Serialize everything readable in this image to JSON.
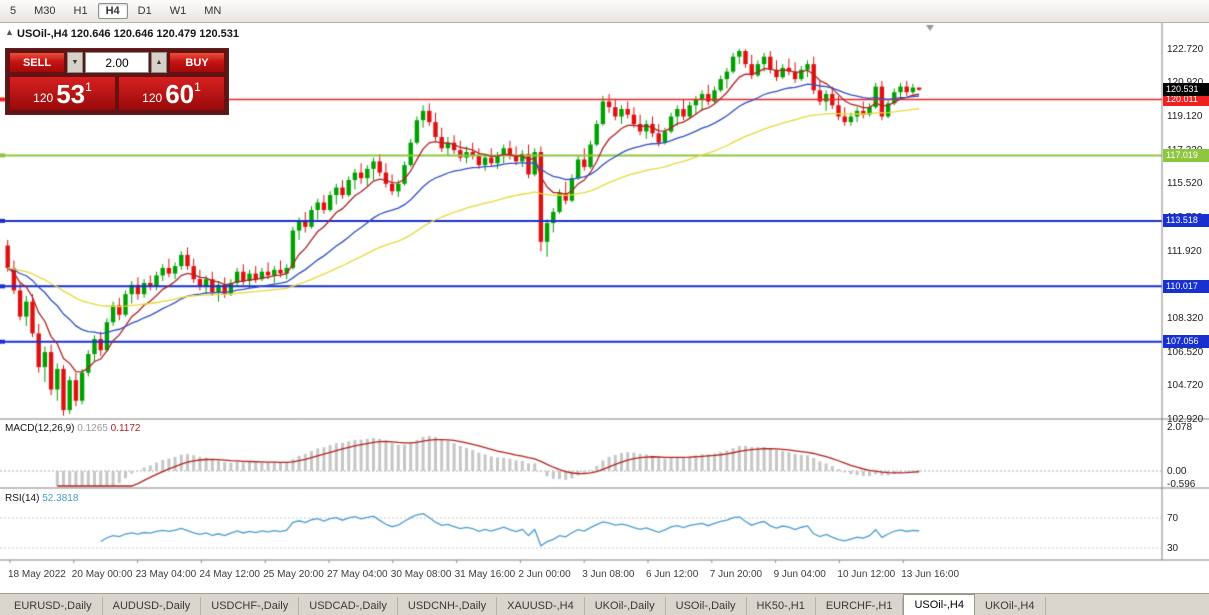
{
  "toolbar": {
    "timeframes": [
      "5",
      "M30",
      "H1",
      "H4",
      "D1",
      "W1",
      "MN"
    ],
    "active": "H4"
  },
  "chart": {
    "title": "USOil-,H4 120.646 120.646 120.479 120.531"
  },
  "trade_panel": {
    "sell_label": "SELL",
    "buy_label": "BUY",
    "volume": "2.00",
    "sell_price": {
      "int": "120",
      "pips": "53",
      "sup": "1"
    },
    "buy_price": {
      "int": "120",
      "pips": "60",
      "sup": "1"
    }
  },
  "tabs": {
    "items": [
      "EURUSD-,Daily",
      "AUDUSD-,Daily",
      "USDCHF-,Daily",
      "USDCAD-,Daily",
      "USDCNH-,Daily",
      "XAUUSD-,H4",
      "UKOil-,Daily",
      "USOil-,Daily",
      "HK50-,H1",
      "EURCHF-,H1",
      "USOil-,H4",
      "UKOil-,H4"
    ],
    "active": "USOil-,H4"
  },
  "colors": {
    "bull": "#00a000",
    "bear": "#e01010",
    "background": "#ffffff",
    "axis_line": "#808080",
    "macd_hist": "#c6c6c6",
    "macd_signal": "#b22222",
    "rsi_line": "#4a9cd3",
    "bid_tag": "#000000",
    "panel": "#4f0f0f",
    "button": "#c41414"
  },
  "chart_data": {
    "type": "candlestick",
    "symbol": "USOil-",
    "timeframe": "H4",
    "last_ohlc": {
      "open": "120.646",
      "high": "120.646",
      "low": "120.479",
      "close": "120.531"
    },
    "price_axis": {
      "labels": [
        "122.720",
        "120.920",
        "119.120",
        "117.320",
        "115.520",
        "113.720",
        "111.920",
        "110.120",
        "108.320",
        "106.520",
        "104.720",
        "102.920"
      ]
    },
    "time_axis": {
      "labels": [
        "18 May 2022",
        "20 May 00:00",
        "23 May 04:00",
        "24 May 12:00",
        "25 May 20:00",
        "27 May 04:00",
        "30 May 08:00",
        "31 May 16:00",
        "2 Jun 00:00",
        "3 Jun 08:00",
        "6 Jun 12:00",
        "7 Jun 20:00",
        "9 Jun 04:00",
        "10 Jun 12:00",
        "13 Jun 16:00"
      ]
    },
    "bid": {
      "price": 120.531,
      "label": "120.531"
    },
    "hlines": [
      {
        "price": 120.011,
        "label": "120.011",
        "color": "#f02020",
        "width": 1.5
      },
      {
        "price": 117.019,
        "label": "117.019",
        "color": "#8dc63f",
        "width": 2
      },
      {
        "price": 113.518,
        "label": "113.518",
        "color": "#1830cf",
        "width": 2
      },
      {
        "price": 110.017,
        "label": "110.017",
        "color": "#1830cf",
        "width": 2
      },
      {
        "price": 107.056,
        "label": "107.056",
        "color": "#1830cf",
        "width": 2
      }
    ],
    "moving_averages": [
      {
        "period": 8,
        "color": "#b22222"
      },
      {
        "period": 24,
        "color": "#3050c8"
      },
      {
        "period": 55,
        "color": "#e8d93a"
      }
    ],
    "macd": {
      "label": "MACD(12,26,9)",
      "value_main": "0.1265",
      "value_signal": "0.1172",
      "axis_labels": [
        {
          "value": 2.078,
          "label": "2.078"
        },
        {
          "value": 0,
          "label": "0.00"
        },
        {
          "value": -0.596,
          "label": "-0.596"
        }
      ]
    },
    "rsi": {
      "label": "RSI(14)",
      "value": "52.3818",
      "levels": [
        {
          "value": 70,
          "label": "70"
        },
        {
          "value": 30,
          "label": "30"
        }
      ]
    },
    "ohlc": [
      [
        112.2,
        112.5,
        110.8,
        111.0
      ],
      [
        111.0,
        111.4,
        109.6,
        109.8
      ],
      [
        109.8,
        110.2,
        108.2,
        108.4
      ],
      [
        108.4,
        109.5,
        107.9,
        109.2
      ],
      [
        109.2,
        109.6,
        107.3,
        107.5
      ],
      [
        107.5,
        108.0,
        105.4,
        105.7
      ],
      [
        105.7,
        106.8,
        104.9,
        106.5
      ],
      [
        106.5,
        106.9,
        104.2,
        104.5
      ],
      [
        104.5,
        105.9,
        103.9,
        105.6
      ],
      [
        105.6,
        105.8,
        103.1,
        103.4
      ],
      [
        103.4,
        105.2,
        103.2,
        105.0
      ],
      [
        105.0,
        105.4,
        103.6,
        103.9
      ],
      [
        103.9,
        105.6,
        103.7,
        105.4
      ],
      [
        105.4,
        106.6,
        105.2,
        106.4
      ],
      [
        106.4,
        107.4,
        106.0,
        107.2
      ],
      [
        107.2,
        107.6,
        106.3,
        106.6
      ],
      [
        106.6,
        108.3,
        106.5,
        108.1
      ],
      [
        108.1,
        109.2,
        107.9,
        109.0
      ],
      [
        109.0,
        109.4,
        108.2,
        108.5
      ],
      [
        108.5,
        109.8,
        108.4,
        109.6
      ],
      [
        109.6,
        110.3,
        109.1,
        110.1
      ],
      [
        110.1,
        110.5,
        109.3,
        109.6
      ],
      [
        109.6,
        110.4,
        109.4,
        110.2
      ],
      [
        110.2,
        110.6,
        109.8,
        110.0
      ],
      [
        110.0,
        110.8,
        109.8,
        110.6
      ],
      [
        110.6,
        111.2,
        110.3,
        111.0
      ],
      [
        111.0,
        111.5,
        110.5,
        110.7
      ],
      [
        110.7,
        111.3,
        110.4,
        111.1
      ],
      [
        111.1,
        111.9,
        110.9,
        111.7
      ],
      [
        111.7,
        112.1,
        110.9,
        111.1
      ],
      [
        111.1,
        111.5,
        110.2,
        110.4
      ],
      [
        110.4,
        110.9,
        109.8,
        110.0
      ],
      [
        110.0,
        110.6,
        109.6,
        110.4
      ],
      [
        110.4,
        110.8,
        109.5,
        109.7
      ],
      [
        109.7,
        110.3,
        109.2,
        110.1
      ],
      [
        110.1,
        110.5,
        109.4,
        109.6
      ],
      [
        109.6,
        110.4,
        109.5,
        110.2
      ],
      [
        110.2,
        111.0,
        110.0,
        110.8
      ],
      [
        110.8,
        111.2,
        110.1,
        110.3
      ],
      [
        110.3,
        110.9,
        109.9,
        110.7
      ],
      [
        110.7,
        111.1,
        110.2,
        110.4
      ],
      [
        110.4,
        111.0,
        110.3,
        110.8
      ],
      [
        110.8,
        111.3,
        110.4,
        110.6
      ],
      [
        110.6,
        111.1,
        110.2,
        110.9
      ],
      [
        110.9,
        111.4,
        110.5,
        110.7
      ],
      [
        110.7,
        111.2,
        110.4,
        111.0
      ],
      [
        111.0,
        113.2,
        110.9,
        113.0
      ],
      [
        113.0,
        113.7,
        112.5,
        113.5
      ],
      [
        113.5,
        114.0,
        112.9,
        113.2
      ],
      [
        113.2,
        114.3,
        113.1,
        114.1
      ],
      [
        114.1,
        114.7,
        113.6,
        114.5
      ],
      [
        114.5,
        114.9,
        113.9,
        114.1
      ],
      [
        114.1,
        115.1,
        114.0,
        114.9
      ],
      [
        114.9,
        115.5,
        114.4,
        115.3
      ],
      [
        115.3,
        115.7,
        114.7,
        114.9
      ],
      [
        114.9,
        115.9,
        114.8,
        115.7
      ],
      [
        115.7,
        116.3,
        115.2,
        116.1
      ],
      [
        116.1,
        116.6,
        115.5,
        115.8
      ],
      [
        115.8,
        116.5,
        115.4,
        116.3
      ],
      [
        116.3,
        116.9,
        115.7,
        116.7
      ],
      [
        116.7,
        117.1,
        115.9,
        116.1
      ],
      [
        116.1,
        116.6,
        115.3,
        115.5
      ],
      [
        115.5,
        116.0,
        114.9,
        115.1
      ],
      [
        115.1,
        115.7,
        114.8,
        115.5
      ],
      [
        115.5,
        116.7,
        115.4,
        116.5
      ],
      [
        116.5,
        117.9,
        116.4,
        117.7
      ],
      [
        117.7,
        119.1,
        117.6,
        118.9
      ],
      [
        118.9,
        119.7,
        118.5,
        119.4
      ],
      [
        119.4,
        119.8,
        118.6,
        118.8
      ],
      [
        118.8,
        119.3,
        117.8,
        118.0
      ],
      [
        118.0,
        118.5,
        117.2,
        117.4
      ],
      [
        117.4,
        118.0,
        117.0,
        117.7
      ],
      [
        117.7,
        118.1,
        117.1,
        117.3
      ],
      [
        117.3,
        117.8,
        116.7,
        116.9
      ],
      [
        116.9,
        117.5,
        116.6,
        117.2
      ],
      [
        117.2,
        117.7,
        116.8,
        117.0
      ],
      [
        117.0,
        117.4,
        116.3,
        116.5
      ],
      [
        116.5,
        117.1,
        116.2,
        116.9
      ],
      [
        116.9,
        117.4,
        116.4,
        116.6
      ],
      [
        116.6,
        117.2,
        116.3,
        117.0
      ],
      [
        117.0,
        117.6,
        116.6,
        117.4
      ],
      [
        117.4,
        117.8,
        116.8,
        117.0
      ],
      [
        117.0,
        117.5,
        116.5,
        116.7
      ],
      [
        116.7,
        117.3,
        116.4,
        117.1
      ],
      [
        117.1,
        117.6,
        115.8,
        116.0
      ],
      [
        116.0,
        117.4,
        115.9,
        117.2
      ],
      [
        117.2,
        117.5,
        111.9,
        112.4
      ],
      [
        112.4,
        113.6,
        111.6,
        113.4
      ],
      [
        113.4,
        114.2,
        112.9,
        114.0
      ],
      [
        114.0,
        115.2,
        113.9,
        115.0
      ],
      [
        115.0,
        115.6,
        114.4,
        114.6
      ],
      [
        114.6,
        116.0,
        114.5,
        115.8
      ],
      [
        115.8,
        117.0,
        115.7,
        116.8
      ],
      [
        116.8,
        117.4,
        116.2,
        116.4
      ],
      [
        116.4,
        117.8,
        116.3,
        117.6
      ],
      [
        117.6,
        118.9,
        117.5,
        118.7
      ],
      [
        118.7,
        120.2,
        118.6,
        119.9
      ],
      [
        119.9,
        120.3,
        119.3,
        119.6
      ],
      [
        119.6,
        120.0,
        118.9,
        119.1
      ],
      [
        119.1,
        119.7,
        118.7,
        119.5
      ],
      [
        119.5,
        119.9,
        119.0,
        119.2
      ],
      [
        119.2,
        119.6,
        118.5,
        118.7
      ],
      [
        118.7,
        119.2,
        118.1,
        118.3
      ],
      [
        118.3,
        118.9,
        117.9,
        118.7
      ],
      [
        118.7,
        119.1,
        118.0,
        118.2
      ],
      [
        118.2,
        118.7,
        117.5,
        117.7
      ],
      [
        117.7,
        118.5,
        117.6,
        118.3
      ],
      [
        118.3,
        119.3,
        118.2,
        119.1
      ],
      [
        119.1,
        119.7,
        118.6,
        119.5
      ],
      [
        119.5,
        120.0,
        118.9,
        119.1
      ],
      [
        119.1,
        119.9,
        119.0,
        119.7
      ],
      [
        119.7,
        120.2,
        119.2,
        120.0
      ],
      [
        120.0,
        120.5,
        119.4,
        120.3
      ],
      [
        120.3,
        120.8,
        119.7,
        119.9
      ],
      [
        119.9,
        120.7,
        119.8,
        120.5
      ],
      [
        120.5,
        121.3,
        120.4,
        121.1
      ],
      [
        121.1,
        121.7,
        120.6,
        121.5
      ],
      [
        121.5,
        122.5,
        121.4,
        122.3
      ],
      [
        122.3,
        122.72,
        121.9,
        122.6
      ],
      [
        122.6,
        122.7,
        121.7,
        121.9
      ],
      [
        121.9,
        122.4,
        121.1,
        121.3
      ],
      [
        121.3,
        122.1,
        121.2,
        121.9
      ],
      [
        121.9,
        122.5,
        121.5,
        122.3
      ],
      [
        122.3,
        122.6,
        121.4,
        121.6
      ],
      [
        121.6,
        122.1,
        121.0,
        121.2
      ],
      [
        121.2,
        121.9,
        121.1,
        121.7
      ],
      [
        121.7,
        122.2,
        121.3,
        121.5
      ],
      [
        121.5,
        122.0,
        120.9,
        121.1
      ],
      [
        121.1,
        121.8,
        121.0,
        121.6
      ],
      [
        121.6,
        122.1,
        121.2,
        121.9
      ],
      [
        121.9,
        122.3,
        120.3,
        120.5
      ],
      [
        120.5,
        121.0,
        119.7,
        119.9
      ],
      [
        119.9,
        120.5,
        119.4,
        120.3
      ],
      [
        120.3,
        120.7,
        119.5,
        119.7
      ],
      [
        119.7,
        120.2,
        118.9,
        119.1
      ],
      [
        119.1,
        119.6,
        118.6,
        118.8
      ],
      [
        118.8,
        119.3,
        118.6,
        119.1
      ],
      [
        119.1,
        119.6,
        118.8,
        119.4
      ],
      [
        119.4,
        119.9,
        119.0,
        119.2
      ],
      [
        119.2,
        119.8,
        119.1,
        119.6
      ],
      [
        119.6,
        120.9,
        119.5,
        120.7
      ],
      [
        120.7,
        121.0,
        118.9,
        119.1
      ],
      [
        119.1,
        120.0,
        119.0,
        119.8
      ],
      [
        119.8,
        120.6,
        119.7,
        120.4
      ],
      [
        120.4,
        120.9,
        120.0,
        120.7
      ],
      [
        120.7,
        121.0,
        120.2,
        120.4
      ],
      [
        120.4,
        120.85,
        120.3,
        120.646
      ],
      [
        120.646,
        120.646,
        120.479,
        120.531
      ]
    ]
  }
}
